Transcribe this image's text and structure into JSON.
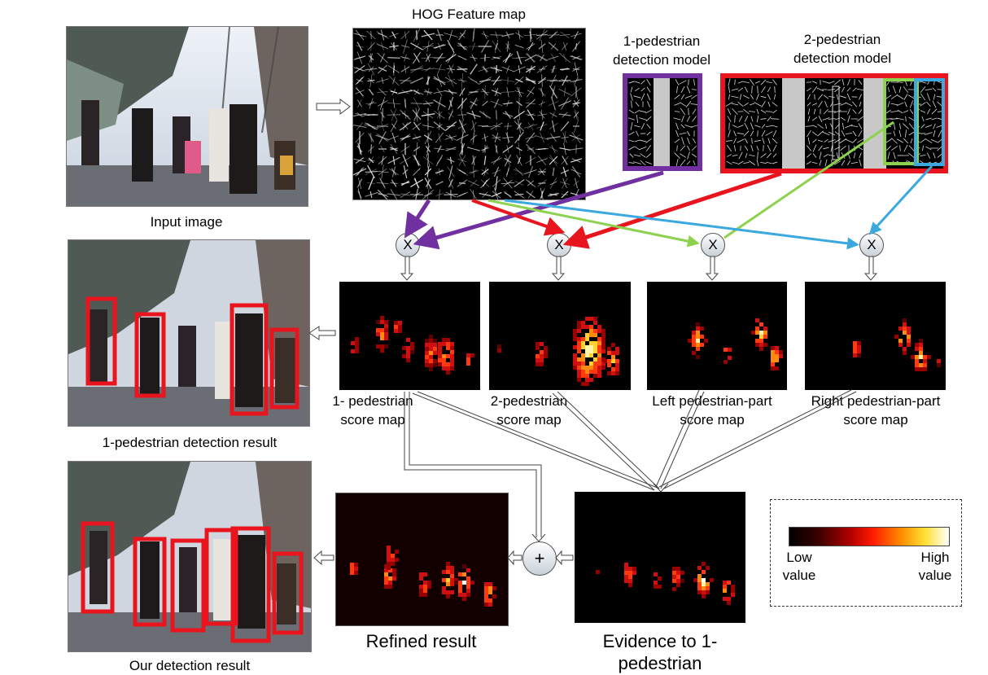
{
  "labels": {
    "hog_feature_map": "HOG Feature map",
    "one_ped_model": [
      "1-pedestrian",
      "detection model"
    ],
    "two_ped_model": [
      "2-pedestrian",
      "detection model"
    ],
    "input_image": "Input image",
    "one_ped_score_map": [
      "1- pedestrian",
      "score map"
    ],
    "two_ped_score_map": [
      "2-pedestrian",
      "score map"
    ],
    "left_part_score_map": [
      "Left pedestrian-part",
      "score map"
    ],
    "right_part_score_map": [
      "Right pedestrian-part",
      "score map"
    ],
    "one_ped_detection_result": "1-pedestrian detection result",
    "our_detection_result": "Our detection result",
    "refined_result": "Refined result",
    "evidence": [
      "Evidence to 1-",
      "pedestrian"
    ]
  },
  "operators": {
    "multiply": "X",
    "add": "+"
  },
  "legend": {
    "low": [
      "Low",
      "value"
    ],
    "high": [
      "High",
      "value"
    ]
  },
  "colors": {
    "purple": "#7030a0",
    "red": "#e8141e",
    "green": "#8dd24f",
    "blue": "#3ba8e0",
    "box": "#e8141e"
  }
}
